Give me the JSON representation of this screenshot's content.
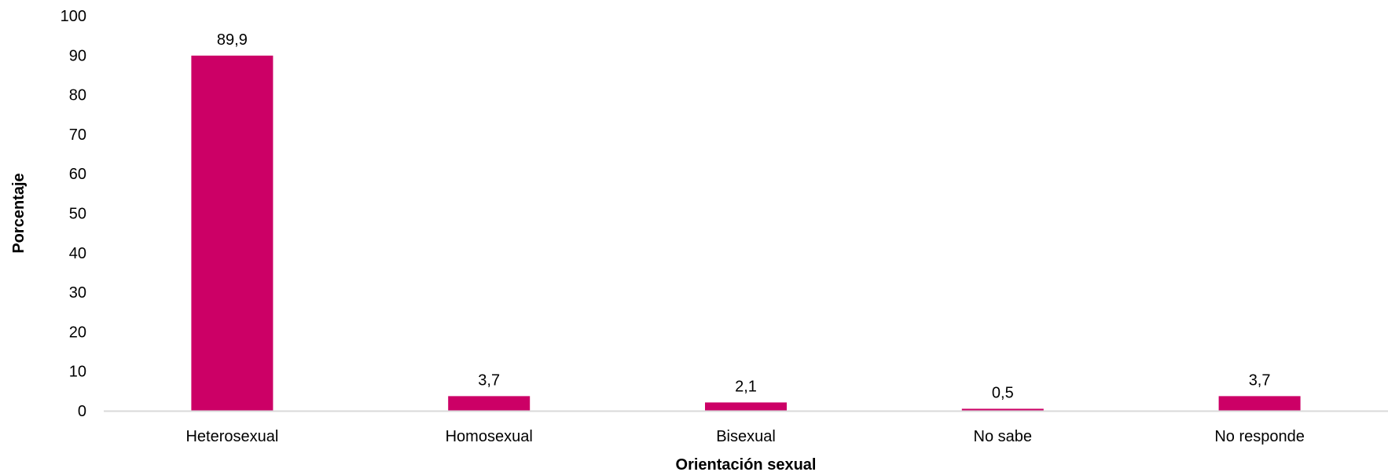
{
  "chart_data": {
    "type": "bar",
    "categories": [
      "Heterosexual",
      "Homosexual",
      "Bisexual",
      "No sabe",
      "No responde"
    ],
    "values": [
      89.9,
      3.7,
      2.1,
      0.5,
      3.7
    ],
    "data_labels": [
      "89,9",
      "3,7",
      "2,1",
      "0,5",
      "3,7"
    ],
    "title": "",
    "xlabel": "Orientación sexual",
    "ylabel": "Porcentaje",
    "ylim": [
      0,
      100
    ],
    "yticks": [
      0,
      10,
      20,
      30,
      40,
      50,
      60,
      70,
      80,
      90,
      100
    ],
    "grid": false,
    "legend": "none",
    "bar_color": "#cc0066",
    "axis_color": "#d9d9d9"
  }
}
